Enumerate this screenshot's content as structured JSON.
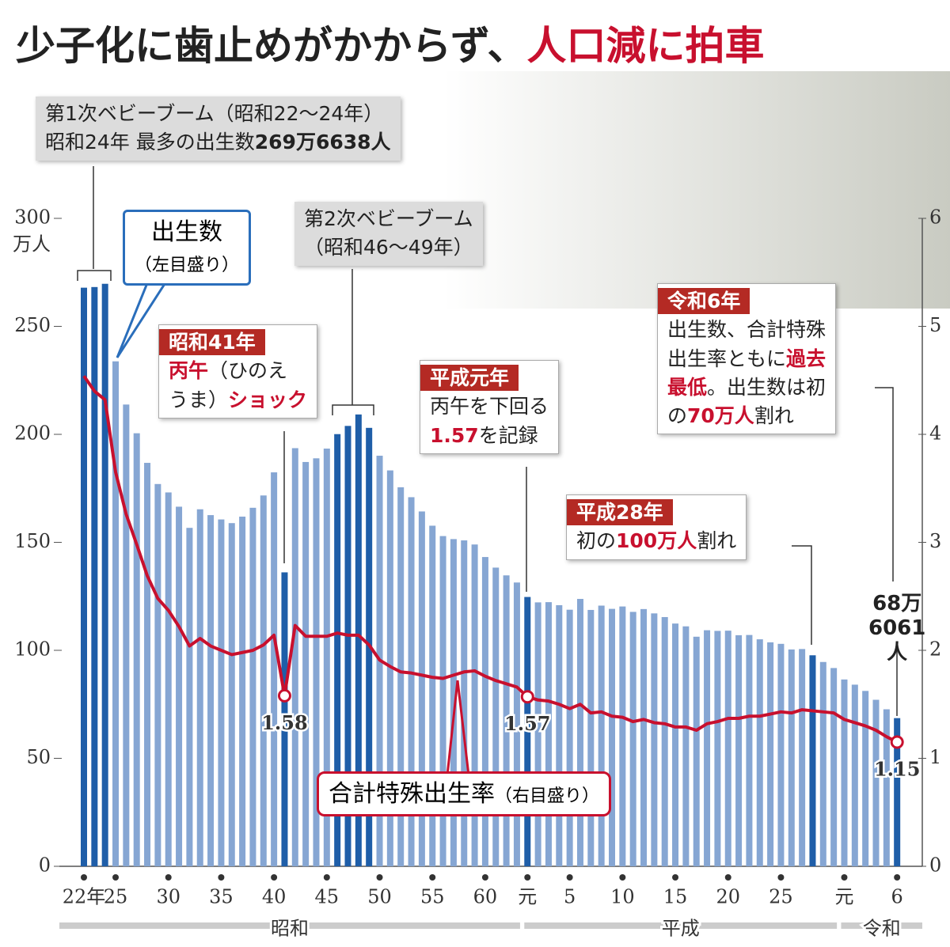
{
  "title": [
    {
      "text": "少子化に歯止めがかからず、"
    },
    {
      "text": "人口減に拍車",
      "color": "#c8102e"
    }
  ],
  "chart_data": {
    "type": "bar_line",
    "categories": [
      "22年",
      null,
      null,
      "25",
      null,
      null,
      null,
      null,
      "30",
      null,
      null,
      null,
      null,
      "35",
      null,
      null,
      null,
      null,
      "40",
      null,
      null,
      null,
      null,
      "45",
      null,
      null,
      null,
      null,
      "50",
      null,
      null,
      null,
      null,
      "55",
      null,
      null,
      null,
      null,
      "60",
      null,
      null,
      null,
      "元",
      null,
      null,
      null,
      "5",
      null,
      null,
      null,
      null,
      "10",
      null,
      null,
      null,
      null,
      "15",
      null,
      null,
      null,
      null,
      "20",
      null,
      null,
      null,
      null,
      "25",
      null,
      null,
      null,
      null,
      null,
      "元",
      null,
      null,
      null,
      null,
      "6"
    ],
    "eras": [
      {
        "name": "昭和",
        "from": 0,
        "to": 41
      },
      {
        "name": "平成",
        "from": 42,
        "to": 71
      },
      {
        "name": "令和",
        "from": 72,
        "to": 77
      }
    ],
    "y_unit": "万人",
    "ylim": [
      0,
      300
    ],
    "yticks": [
      0,
      50,
      100,
      150,
      200,
      250,
      300
    ],
    "y2lim": [
      0,
      6
    ],
    "y2ticks": [
      0,
      1,
      2,
      3,
      4,
      5,
      6
    ],
    "series": [
      {
        "name": "出生数",
        "note": "（左目盛り）",
        "color": "#86a6d3",
        "highlight_color": "#1f5ea8",
        "highlight": [
          0,
          1,
          2,
          19,
          24,
          25,
          26,
          27,
          42,
          69,
          77
        ],
        "values": [
          267.9,
          268.2,
          269.7,
          233.8,
          213.8,
          200.5,
          186.8,
          177.0,
          173.1,
          166.5,
          156.7,
          165.3,
          162.6,
          160.6,
          158.9,
          161.9,
          166.0,
          171.7,
          182.4,
          136.1,
          193.6,
          187.2,
          188.9,
          193.4,
          200.1,
          203.9,
          209.2,
          203.0,
          190.1,
          183.3,
          175.5,
          170.9,
          164.3,
          157.7,
          152.9,
          151.5,
          150.9,
          149.0,
          143.2,
          138.3,
          134.7,
          131.4,
          124.7,
          122.2,
          122.3,
          120.9,
          118.8,
          123.8,
          118.7,
          120.7,
          119.2,
          120.3,
          117.8,
          119.1,
          117.1,
          115.4,
          112.4,
          111.1,
          106.3,
          109.3,
          109.0,
          109.1,
          107.0,
          107.1,
          105.1,
          103.7,
          103.0,
          100.4,
          100.6,
          97.7,
          94.6,
          91.8,
          86.5,
          84.1,
          81.2,
          77.1,
          72.7,
          68.6061
        ],
        "value_labels": [
          null,
          null,
          null,
          null,
          null,
          null,
          null,
          null,
          null,
          null,
          null,
          null,
          null,
          null,
          null,
          null,
          null,
          null,
          null,
          null,
          null,
          null,
          null,
          null,
          null,
          null,
          null,
          null,
          null,
          null,
          null,
          null,
          null,
          null,
          null,
          null,
          null,
          null,
          null,
          null,
          null,
          null,
          null,
          null,
          null,
          null,
          null,
          null,
          null,
          null,
          null,
          null,
          null,
          null,
          null,
          null,
          null,
          null,
          null,
          null,
          null,
          null,
          null,
          null,
          null,
          null,
          null,
          null,
          null,
          null,
          null,
          null,
          null,
          null,
          null,
          null,
          null,
          "68万6061人"
        ]
      },
      {
        "name": "合計特殊出生率",
        "note": "（右目盛り）",
        "axis": "y2",
        "color": "#c8102e",
        "labeled": [
          19,
          42,
          77
        ],
        "values": [
          4.54,
          4.4,
          4.32,
          3.65,
          3.26,
          2.98,
          2.69,
          2.48,
          2.37,
          2.22,
          2.04,
          2.11,
          2.04,
          2.0,
          1.96,
          1.98,
          2.0,
          2.05,
          2.14,
          1.58,
          2.23,
          2.13,
          2.13,
          2.13,
          2.16,
          2.14,
          2.14,
          2.05,
          1.91,
          1.85,
          1.8,
          1.79,
          1.77,
          1.75,
          1.74,
          1.77,
          1.8,
          1.81,
          1.76,
          1.72,
          1.69,
          1.66,
          1.57,
          1.54,
          1.53,
          1.5,
          1.46,
          1.5,
          1.42,
          1.43,
          1.39,
          1.38,
          1.34,
          1.36,
          1.33,
          1.32,
          1.29,
          1.29,
          1.26,
          1.32,
          1.34,
          1.37,
          1.37,
          1.39,
          1.39,
          1.41,
          1.43,
          1.42,
          1.45,
          1.44,
          1.43,
          1.42,
          1.36,
          1.33,
          1.3,
          1.26,
          1.2,
          1.15
        ]
      }
    ]
  },
  "annotations": [
    {
      "style": "gray",
      "lines": [
        [
          {
            "text": "第1次ベビーブーム"
          },
          {
            "text": "（昭和22～24年）"
          }
        ],
        [
          {
            "text": "昭和24年 最多の出生数"
          },
          {
            "text": "269万6638人",
            "bold": true
          }
        ]
      ]
    },
    {
      "style": "gray",
      "lines": [
        [
          {
            "text": "第2次ベビーブーム"
          }
        ],
        [
          {
            "text": "（昭和46～49年）"
          }
        ]
      ]
    },
    {
      "style": "white",
      "header": "昭和41年",
      "lines": [
        [
          {
            "text": "丙午",
            "color": "#c8102e",
            "bold": true
          },
          {
            "text": "（ひのえ"
          }
        ],
        [
          {
            "text": "うま）"
          },
          {
            "text": "ショック",
            "color": "#c8102e",
            "bold": true
          }
        ]
      ]
    },
    {
      "style": "white",
      "header": "平成元年",
      "lines": [
        [
          {
            "text": "丙午を下回る"
          }
        ],
        [
          {
            "text": "1.57",
            "color": "#c8102e",
            "bold": true
          },
          {
            "text": "を記録"
          }
        ]
      ]
    },
    {
      "style": "white",
      "header": "令和6年",
      "lines": [
        [
          {
            "text": "出生数、合計特殊"
          }
        ],
        [
          {
            "text": "出生率ともに"
          },
          {
            "text": "過去",
            "color": "#c8102e"
          }
        ],
        [
          {
            "text": "最低",
            "color": "#c8102e"
          },
          {
            "text": "。出生数は初"
          }
        ],
        [
          {
            "text": "の"
          },
          {
            "text": "70万人",
            "color": "#c8102e"
          },
          {
            "text": "割れ"
          }
        ]
      ]
    },
    {
      "style": "white",
      "header": "平成28年",
      "lines": [
        [
          {
            "text": "初の"
          },
          {
            "text": "100万人",
            "color": "#c8102e"
          },
          {
            "text": "割れ"
          }
        ]
      ]
    }
  ]
}
